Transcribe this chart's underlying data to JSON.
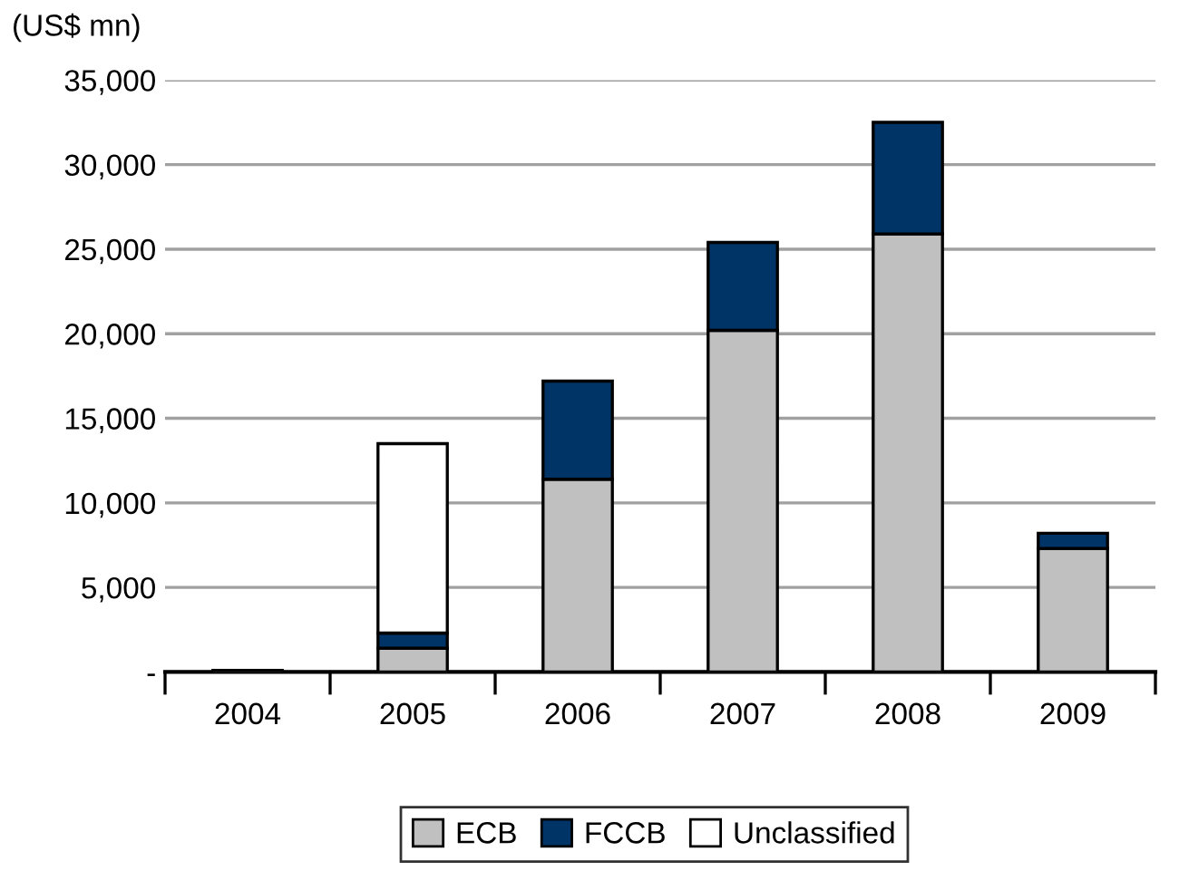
{
  "chart_data": {
    "type": "bar",
    "stacked": true,
    "ylabel": "(US$ mn)",
    "categories": [
      "2004",
      "2005",
      "2006",
      "2007",
      "2008",
      "2009"
    ],
    "series": [
      {
        "name": "ECB",
        "color": "#c0c0c0",
        "values": [
          100,
          1400,
          11400,
          20200,
          25900,
          7300
        ]
      },
      {
        "name": "FCCB",
        "color": "#003366",
        "values": [
          null,
          900,
          5800,
          5200,
          6600,
          900
        ]
      },
      {
        "name": "Unclassified",
        "color": "#ffffff",
        "values": [
          null,
          11200,
          null,
          null,
          null,
          null
        ]
      }
    ],
    "ylim": [
      0,
      35000
    ],
    "yticks": [
      {
        "value": 0,
        "label": "-"
      },
      {
        "value": 5000,
        "label": "5,000"
      },
      {
        "value": 10000,
        "label": "10,000"
      },
      {
        "value": 15000,
        "label": "15,000"
      },
      {
        "value": 20000,
        "label": "20,000"
      },
      {
        "value": 25000,
        "label": "25,000"
      },
      {
        "value": 30000,
        "label": "30,000"
      },
      {
        "value": 35000,
        "label": "35,000"
      }
    ],
    "grid": "y",
    "legend": "bottom"
  }
}
